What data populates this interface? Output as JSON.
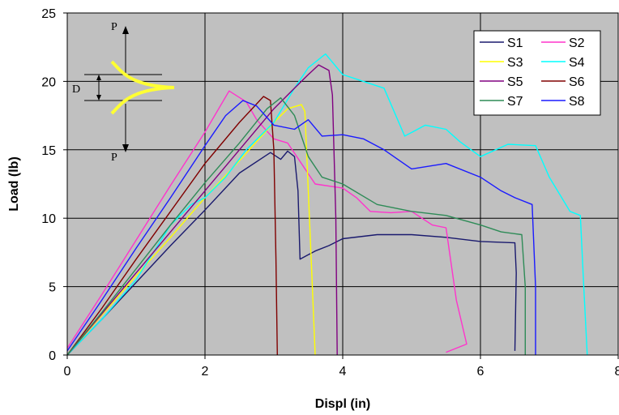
{
  "chart_data": {
    "type": "line",
    "title": "",
    "xlabel": "Displ (in)",
    "ylabel": "Load (lb)",
    "xlim": [
      0,
      8
    ],
    "ylim": [
      0,
      25
    ],
    "xticks": [
      0,
      2,
      4,
      6,
      8
    ],
    "yticks": [
      0,
      5,
      10,
      15,
      20,
      25
    ],
    "grid": true,
    "legend_position": "top-right",
    "plot_background": "#c0c0c0",
    "inset": {
      "top_label": "P",
      "middle_label": "D",
      "bottom_label": "P",
      "color": "#ffff33"
    },
    "series": [
      {
        "name": "S1",
        "color": "#1a1a6e",
        "points": [
          [
            0,
            0
          ],
          [
            0.5,
            2.6
          ],
          [
            1.0,
            5.3
          ],
          [
            1.5,
            8.0
          ],
          [
            2.0,
            10.6
          ],
          [
            2.5,
            13.3
          ],
          [
            2.95,
            14.8
          ],
          [
            3.1,
            14.3
          ],
          [
            3.2,
            14.9
          ],
          [
            3.3,
            14.5
          ],
          [
            3.35,
            12.0
          ],
          [
            3.38,
            7.0
          ],
          [
            3.6,
            7.6
          ],
          [
            3.8,
            8.0
          ],
          [
            4.0,
            8.5
          ],
          [
            4.5,
            8.8
          ],
          [
            5.0,
            8.8
          ],
          [
            5.5,
            8.6
          ],
          [
            6.0,
            8.3
          ],
          [
            6.5,
            8.2
          ],
          [
            6.52,
            6.0
          ],
          [
            6.5,
            0.3
          ]
        ]
      },
      {
        "name": "S2",
        "color": "#ff33cc",
        "points": [
          [
            0,
            0.5
          ],
          [
            0.5,
            4.4
          ],
          [
            1.0,
            8.4
          ],
          [
            1.5,
            12.4
          ],
          [
            2.0,
            16.3
          ],
          [
            2.35,
            19.3
          ],
          [
            2.6,
            18.5
          ],
          [
            2.75,
            17.2
          ],
          [
            3.0,
            15.8
          ],
          [
            3.2,
            15.5
          ],
          [
            3.4,
            14.0
          ],
          [
            3.6,
            12.5
          ],
          [
            4.0,
            12.2
          ],
          [
            4.2,
            11.5
          ],
          [
            4.4,
            10.5
          ],
          [
            4.7,
            10.4
          ],
          [
            5.0,
            10.5
          ],
          [
            5.3,
            9.5
          ],
          [
            5.5,
            9.3
          ],
          [
            5.65,
            4.0
          ],
          [
            5.8,
            0.8
          ],
          [
            5.5,
            0.2
          ]
        ]
      },
      {
        "name": "S3",
        "color": "#ffff00",
        "points": [
          [
            0,
            0
          ],
          [
            0.5,
            2.9
          ],
          [
            1.0,
            5.8
          ],
          [
            1.5,
            8.6
          ],
          [
            2.0,
            11.5
          ],
          [
            2.5,
            14.2
          ],
          [
            3.0,
            17.0
          ],
          [
            3.2,
            18.0
          ],
          [
            3.4,
            18.3
          ],
          [
            3.45,
            17.8
          ],
          [
            3.5,
            12.0
          ],
          [
            3.55,
            6.0
          ],
          [
            3.6,
            0
          ]
        ]
      },
      {
        "name": "S4",
        "color": "#00ffff",
        "points": [
          [
            0,
            0
          ],
          [
            0.5,
            2.6
          ],
          [
            1.0,
            5.5
          ],
          [
            1.5,
            9.5
          ],
          [
            1.8,
            11.0
          ],
          [
            2.0,
            11.5
          ],
          [
            2.3,
            13.0
          ],
          [
            2.6,
            15.0
          ],
          [
            3.0,
            17.0
          ],
          [
            3.3,
            19.5
          ],
          [
            3.5,
            21.0
          ],
          [
            3.75,
            22.0
          ],
          [
            4.0,
            20.5
          ],
          [
            4.3,
            20.0
          ],
          [
            4.6,
            19.5
          ],
          [
            4.9,
            16.0
          ],
          [
            5.2,
            16.8
          ],
          [
            5.5,
            16.5
          ],
          [
            5.7,
            15.6
          ],
          [
            6.0,
            14.5
          ],
          [
            6.4,
            15.4
          ],
          [
            6.8,
            15.3
          ],
          [
            7.0,
            13.0
          ],
          [
            7.3,
            10.5
          ],
          [
            7.45,
            10.2
          ],
          [
            7.5,
            5.0
          ],
          [
            7.55,
            0
          ]
        ]
      },
      {
        "name": "S5",
        "color": "#800080",
        "points": [
          [
            0,
            0
          ],
          [
            0.5,
            3.0
          ],
          [
            1.0,
            6.0
          ],
          [
            1.5,
            9.0
          ],
          [
            2.0,
            12.0
          ],
          [
            2.5,
            15.0
          ],
          [
            3.0,
            18.0
          ],
          [
            3.3,
            19.5
          ],
          [
            3.5,
            20.5
          ],
          [
            3.65,
            21.2
          ],
          [
            3.8,
            20.8
          ],
          [
            3.85,
            19.0
          ],
          [
            3.9,
            10.0
          ],
          [
            3.92,
            0
          ]
        ]
      },
      {
        "name": "S6",
        "color": "#800000",
        "points": [
          [
            0,
            0
          ],
          [
            0.5,
            3.4
          ],
          [
            1.0,
            7.0
          ],
          [
            1.5,
            10.5
          ],
          [
            2.0,
            14.0
          ],
          [
            2.5,
            17.0
          ],
          [
            2.85,
            18.9
          ],
          [
            2.95,
            18.6
          ],
          [
            3.0,
            15.0
          ],
          [
            3.03,
            7.0
          ],
          [
            3.05,
            0
          ]
        ]
      },
      {
        "name": "S7",
        "color": "#2e8b57",
        "points": [
          [
            0,
            0
          ],
          [
            0.5,
            3.1
          ],
          [
            1.0,
            6.3
          ],
          [
            1.5,
            9.5
          ],
          [
            2.0,
            12.6
          ],
          [
            2.5,
            15.5
          ],
          [
            2.9,
            18.0
          ],
          [
            3.1,
            18.8
          ],
          [
            3.3,
            17.5
          ],
          [
            3.5,
            14.5
          ],
          [
            3.7,
            13.0
          ],
          [
            4.0,
            12.5
          ],
          [
            4.5,
            11.0
          ],
          [
            5.0,
            10.5
          ],
          [
            5.5,
            10.2
          ],
          [
            6.0,
            9.5
          ],
          [
            6.3,
            9.0
          ],
          [
            6.6,
            8.8
          ],
          [
            6.65,
            5.0
          ],
          [
            6.65,
            0
          ]
        ]
      },
      {
        "name": "S8",
        "color": "#1a1aff",
        "points": [
          [
            0,
            0.3
          ],
          [
            0.5,
            4.0
          ],
          [
            1.0,
            7.8
          ],
          [
            1.5,
            11.5
          ],
          [
            2.0,
            15.3
          ],
          [
            2.3,
            17.5
          ],
          [
            2.55,
            18.6
          ],
          [
            2.75,
            18.2
          ],
          [
            3.0,
            16.8
          ],
          [
            3.3,
            16.5
          ],
          [
            3.5,
            17.2
          ],
          [
            3.7,
            16.0
          ],
          [
            4.0,
            16.1
          ],
          [
            4.3,
            15.8
          ],
          [
            4.6,
            15.0
          ],
          [
            5.0,
            13.6
          ],
          [
            5.5,
            14.0
          ],
          [
            6.0,
            13.0
          ],
          [
            6.3,
            12.0
          ],
          [
            6.5,
            11.5
          ],
          [
            6.75,
            11.0
          ],
          [
            6.8,
            5.0
          ],
          [
            6.8,
            0
          ]
        ]
      }
    ]
  }
}
